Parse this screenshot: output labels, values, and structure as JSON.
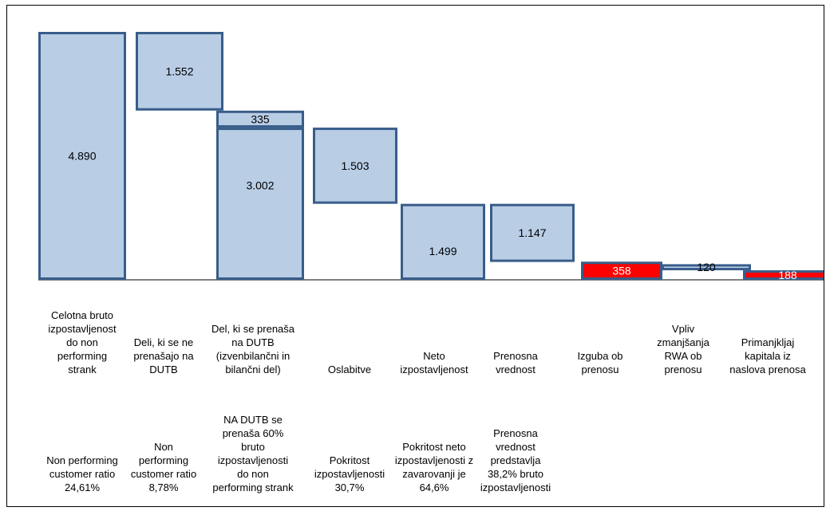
{
  "chart_data": {
    "type": "bar",
    "title": "",
    "xlabel": "",
    "ylabel": "",
    "ylim": [
      0,
      4890
    ],
    "grid": false,
    "legend": "none",
    "colors": {
      "positive_fill": "#b9cde5",
      "positive_border": "#385d8a",
      "negative_fill": "#ff0000",
      "negative_border": "#385d8a"
    },
    "bars": [
      {
        "category": "Celotna bruto\nizpostavljenost\ndo non\nperforming\nstrank",
        "label": "4.890",
        "bottom": 0,
        "top": 4890,
        "highlight": false
      },
      {
        "category": "Deli, ki se ne\nprenašajo na\nDUTB",
        "label": "1.552",
        "bottom": 3338,
        "top": 4890,
        "highlight": false
      },
      {
        "category": "Del, ki se prenaša\nna DUTB\n(izvenbilančni in\nbilančni del)",
        "label": "335",
        "bottom": 3002,
        "top": 3337,
        "highlight": false
      },
      {
        "category": "",
        "label": "3.002",
        "bottom": 0,
        "top": 3002,
        "highlight": false
      },
      {
        "category": "Oslabitve",
        "label": "1.503",
        "bottom": 1499,
        "top": 3002,
        "highlight": false
      },
      {
        "category": "Neto\nizpostavljenost",
        "label": "1.499",
        "bottom": 0,
        "top": 1499,
        "highlight": false
      },
      {
        "category": "Prenosna\nvrednost",
        "label": "1.147",
        "bottom": 352,
        "top": 1499,
        "highlight": false
      },
      {
        "category": "Izguba ob\nprenosu",
        "label": "358",
        "bottom": 0,
        "top": 358,
        "highlight": true
      },
      {
        "category": "Vpliv\nzmanjšanja\nRWA ob\nprenosu",
        "label": "120",
        "bottom": 188,
        "top": 308,
        "highlight": false
      },
      {
        "category": "Primanjkljaj\nkapitala iz\nnaslova prenosa",
        "label": "188",
        "bottom": 0,
        "top": 188,
        "highlight": true
      }
    ],
    "annotations": [
      {
        "slot": 0,
        "text": "Non performing\ncustomer ratio\n24,61%"
      },
      {
        "slot": 1,
        "text": "Non\nperforming\ncustomer ratio\n8,78%"
      },
      {
        "slot": 2,
        "text": "NA DUTB se\nprenaša 60%\nbruto\nizpostavljenosti\ndo non\nperforming strank"
      },
      {
        "slot": 3,
        "text": "Pokritost\nizpostavljenosti\n30,7%"
      },
      {
        "slot": 4,
        "text": "Pokritost neto\nizpostavljenosti z\nzavarovanji je\n64,6%"
      },
      {
        "slot": 5,
        "text": "Prenosna\nvrednost\npredstavlja\n38,2% bruto\nizpostavljenosti"
      }
    ]
  }
}
